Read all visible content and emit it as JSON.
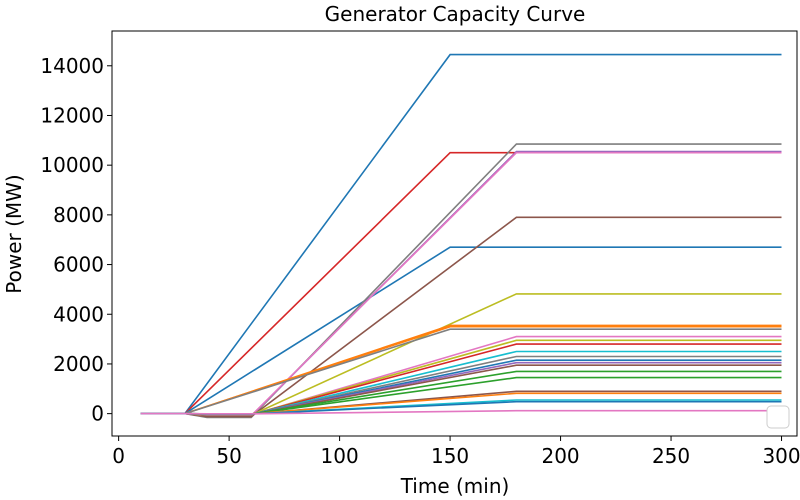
{
  "chart_data": {
    "type": "line",
    "title": "Generator Capacity Curve",
    "xlabel": "Time (min)",
    "ylabel": "Power (MW)",
    "xlim": [
      -3,
      307
    ],
    "ylim": [
      -900,
      15400
    ],
    "xticks": [
      0,
      50,
      100,
      150,
      200,
      250,
      300
    ],
    "yticks": [
      0,
      2000,
      4000,
      6000,
      8000,
      10000,
      12000,
      14000
    ],
    "grid": false,
    "legend": "lower-right (empty)",
    "series": [
      {
        "color": "#1f77b4",
        "points": [
          [
            10,
            0
          ],
          [
            30,
            0
          ],
          [
            150,
            14450
          ],
          [
            300,
            14450
          ]
        ]
      },
      {
        "color": "#d62728",
        "points": [
          [
            10,
            0
          ],
          [
            30,
            0
          ],
          [
            150,
            10500
          ],
          [
            300,
            10500
          ]
        ]
      },
      {
        "color": "#1f77b4",
        "points": [
          [
            10,
            0
          ],
          [
            30,
            0
          ],
          [
            150,
            6700
          ],
          [
            300,
            6700
          ]
        ]
      },
      {
        "color": "#7f7f7f",
        "points": [
          [
            10,
            0
          ],
          [
            30,
            0
          ],
          [
            40,
            -150
          ],
          [
            60,
            -150
          ],
          [
            180,
            10850
          ],
          [
            300,
            10850
          ]
        ]
      },
      {
        "color": "#9467bd",
        "points": [
          [
            10,
            0
          ],
          [
            30,
            0
          ],
          [
            40,
            -100
          ],
          [
            60,
            -100
          ],
          [
            180,
            10550
          ],
          [
            300,
            10550
          ]
        ]
      },
      {
        "color": "#e377c2",
        "points": [
          [
            10,
            0
          ],
          [
            30,
            0
          ],
          [
            40,
            -80
          ],
          [
            60,
            -80
          ],
          [
            180,
            10500
          ],
          [
            300,
            10500
          ]
        ]
      },
      {
        "color": "#8c564b",
        "points": [
          [
            10,
            0
          ],
          [
            30,
            0
          ],
          [
            40,
            -120
          ],
          [
            60,
            -120
          ],
          [
            180,
            7900
          ],
          [
            300,
            7900
          ]
        ]
      },
      {
        "color": "#bcbd22",
        "points": [
          [
            10,
            0
          ],
          [
            30,
            0
          ],
          [
            40,
            -60
          ],
          [
            60,
            -60
          ],
          [
            180,
            4820
          ],
          [
            300,
            4820
          ]
        ]
      },
      {
        "color": "#ff7f0e",
        "points": [
          [
            10,
            0
          ],
          [
            30,
            0
          ],
          [
            150,
            3550
          ],
          [
            300,
            3550
          ]
        ]
      },
      {
        "color": "#ff7f0e",
        "points": [
          [
            10,
            0
          ],
          [
            30,
            0
          ],
          [
            150,
            3500
          ],
          [
            300,
            3500
          ]
        ]
      },
      {
        "color": "#7f7f7f",
        "points": [
          [
            10,
            0
          ],
          [
            30,
            0
          ],
          [
            150,
            3400
          ],
          [
            300,
            3400
          ]
        ]
      },
      {
        "color": "#e377c2",
        "points": [
          [
            10,
            0
          ],
          [
            30,
            0
          ],
          [
            40,
            -50
          ],
          [
            60,
            -50
          ],
          [
            180,
            3100
          ],
          [
            300,
            3100
          ]
        ]
      },
      {
        "color": "#bcbd22",
        "points": [
          [
            10,
            0
          ],
          [
            30,
            0
          ],
          [
            40,
            -40
          ],
          [
            60,
            -40
          ],
          [
            180,
            2950
          ],
          [
            300,
            2950
          ]
        ]
      },
      {
        "color": "#d62728",
        "points": [
          [
            10,
            0
          ],
          [
            30,
            0
          ],
          [
            40,
            -40
          ],
          [
            60,
            -40
          ],
          [
            180,
            2800
          ],
          [
            300,
            2800
          ]
        ]
      },
      {
        "color": "#17becf",
        "points": [
          [
            10,
            0
          ],
          [
            30,
            0
          ],
          [
            40,
            -30
          ],
          [
            60,
            -30
          ],
          [
            180,
            2500
          ],
          [
            300,
            2500
          ]
        ]
      },
      {
        "color": "#7f7f7f",
        "points": [
          [
            10,
            0
          ],
          [
            30,
            0
          ],
          [
            40,
            -30
          ],
          [
            60,
            -30
          ],
          [
            180,
            2300
          ],
          [
            300,
            2300
          ]
        ]
      },
      {
        "color": "#1f77b4",
        "points": [
          [
            10,
            0
          ],
          [
            30,
            0
          ],
          [
            40,
            -30
          ],
          [
            60,
            -30
          ],
          [
            180,
            2150
          ],
          [
            300,
            2150
          ]
        ]
      },
      {
        "color": "#9467bd",
        "points": [
          [
            10,
            0
          ],
          [
            30,
            0
          ],
          [
            40,
            -30
          ],
          [
            60,
            -30
          ],
          [
            180,
            2050
          ],
          [
            300,
            2050
          ]
        ]
      },
      {
        "color": "#8c564b",
        "points": [
          [
            10,
            0
          ],
          [
            30,
            0
          ],
          [
            40,
            -30
          ],
          [
            60,
            -30
          ],
          [
            180,
            1950
          ],
          [
            300,
            1950
          ]
        ]
      },
      {
        "color": "#2ca02c",
        "points": [
          [
            10,
            0
          ],
          [
            30,
            0
          ],
          [
            40,
            -20
          ],
          [
            60,
            -20
          ],
          [
            180,
            1700
          ],
          [
            300,
            1700
          ]
        ]
      },
      {
        "color": "#2ca02c",
        "points": [
          [
            10,
            0
          ],
          [
            30,
            0
          ],
          [
            40,
            -20
          ],
          [
            60,
            -20
          ],
          [
            180,
            1450
          ],
          [
            300,
            1450
          ]
        ]
      },
      {
        "color": "#8c564b",
        "points": [
          [
            10,
            0
          ],
          [
            30,
            0
          ],
          [
            40,
            -20
          ],
          [
            60,
            -20
          ],
          [
            180,
            900
          ],
          [
            300,
            900
          ]
        ]
      },
      {
        "color": "#ff7f0e",
        "points": [
          [
            10,
            0
          ],
          [
            30,
            0
          ],
          [
            40,
            -10
          ],
          [
            60,
            -10
          ],
          [
            180,
            820
          ],
          [
            300,
            820
          ]
        ]
      },
      {
        "color": "#17becf",
        "points": [
          [
            10,
            0
          ],
          [
            30,
            0
          ],
          [
            40,
            -10
          ],
          [
            60,
            -10
          ],
          [
            180,
            550
          ],
          [
            300,
            550
          ]
        ]
      },
      {
        "color": "#1f77b4",
        "points": [
          [
            10,
            0
          ],
          [
            30,
            0
          ],
          [
            40,
            -10
          ],
          [
            60,
            -10
          ],
          [
            180,
            480
          ],
          [
            300,
            480
          ]
        ]
      },
      {
        "color": "#e377c2",
        "points": [
          [
            10,
            0
          ],
          [
            30,
            0
          ],
          [
            40,
            -5
          ],
          [
            60,
            -5
          ],
          [
            180,
            120
          ],
          [
            300,
            120
          ]
        ]
      }
    ]
  }
}
